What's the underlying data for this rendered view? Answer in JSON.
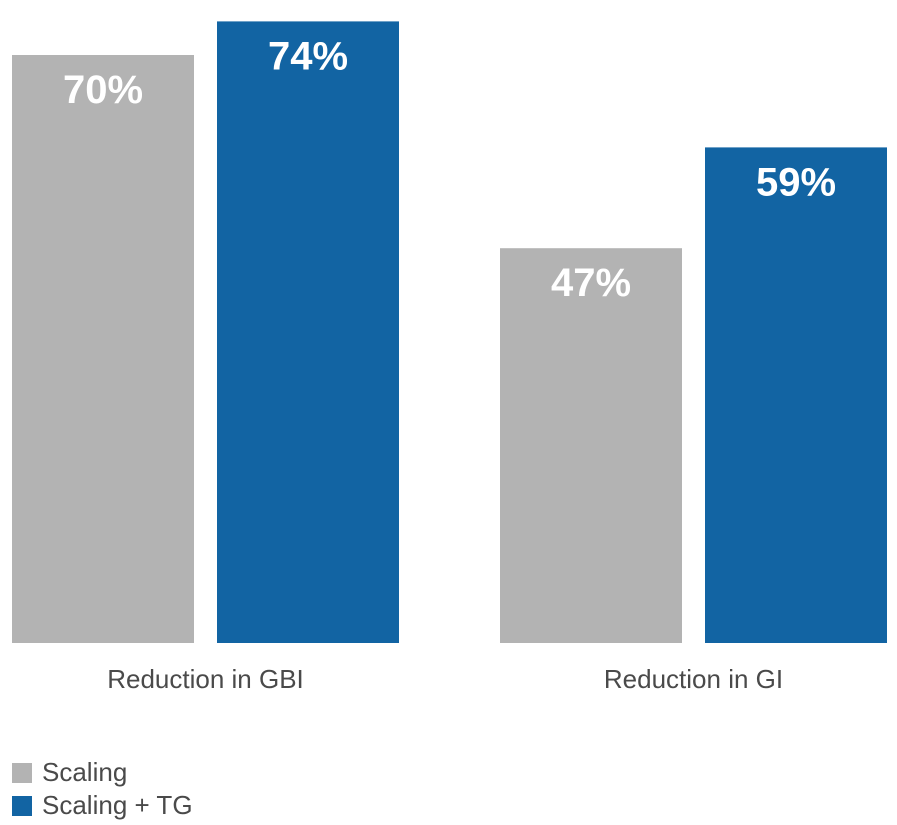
{
  "chart_data": {
    "type": "bar",
    "categories": [
      "Reduction in GBI",
      "Reduction in GI"
    ],
    "series": [
      {
        "name": "Scaling",
        "values": [
          70,
          47
        ],
        "color": "#b3b3b3"
      },
      {
        "name": "Scaling + TG",
        "values": [
          74,
          59
        ],
        "color": "#1264a3"
      }
    ],
    "value_format": "percent",
    "ylim": [
      0,
      100
    ],
    "grid": false,
    "legend_position": "bottom-left"
  }
}
